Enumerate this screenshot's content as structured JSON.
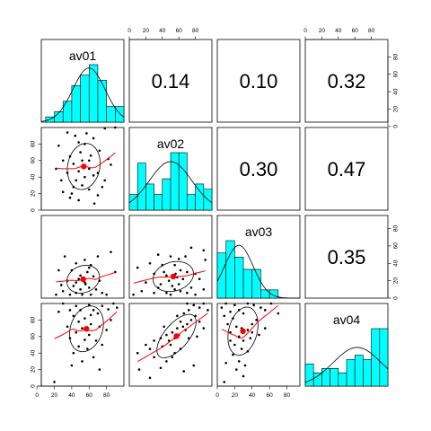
{
  "chart_data": {
    "type": "scatter",
    "title": "",
    "variables": [
      "av01",
      "av02",
      "av03",
      "av04"
    ],
    "correlations": [
      {
        "row": 0,
        "col": 1,
        "value": "0.14"
      },
      {
        "row": 0,
        "col": 2,
        "value": "0.10"
      },
      {
        "row": 0,
        "col": 3,
        "value": "0.32"
      },
      {
        "row": 1,
        "col": 2,
        "value": "0.30"
      },
      {
        "row": 1,
        "col": 3,
        "value": "0.47"
      },
      {
        "row": 2,
        "col": 3,
        "value": "0.35"
      }
    ],
    "axes": {
      "av01": {
        "range": [
          5,
          100
        ],
        "ticks": [
          0,
          20,
          40,
          60,
          80
        ],
        "tick_labels": [
          "0",
          "20",
          "40",
          "60",
          "80"
        ]
      },
      "av02": {
        "range": [
          0,
          100
        ],
        "ticks": [
          0,
          20,
          40,
          60,
          80
        ],
        "tick_labels": [
          "0",
          "20",
          "40",
          "60",
          "80"
        ]
      },
      "av03": {
        "range": [
          0,
          95
        ],
        "ticks": [
          0,
          20,
          40,
          60,
          80
        ],
        "tick_labels": [
          "0",
          "20",
          "40",
          "60",
          "80"
        ]
      },
      "av04": {
        "range": [
          0,
          100
        ],
        "ticks": [
          0,
          20,
          40,
          60,
          80
        ],
        "tick_labels": [
          "0",
          "20",
          "40",
          "60",
          "80"
        ]
      }
    },
    "histograms": {
      "av01": {
        "breaks": [
          10,
          20,
          30,
          40,
          50,
          60,
          70,
          80,
          90,
          100
        ],
        "counts": [
          1,
          2,
          4,
          7,
          9,
          11,
          8,
          3,
          3
        ]
      },
      "av02": {
        "breaks": [
          0,
          10,
          20,
          30,
          40,
          50,
          60,
          70,
          80,
          90,
          100
        ],
        "counts": [
          3,
          9,
          5,
          3,
          6,
          11,
          11,
          3,
          5,
          4
        ]
      },
      "av03": {
        "breaks": [
          0,
          10,
          20,
          30,
          40,
          50,
          60,
          70,
          80
        ],
        "counts": [
          11,
          14,
          10,
          7,
          7,
          2,
          2,
          0
        ]
      },
      "av04": {
        "breaks": [
          0,
          10,
          20,
          30,
          40,
          50,
          60,
          70,
          80,
          90,
          100
        ],
        "counts": [
          5,
          3,
          4,
          4,
          3,
          6,
          7,
          6,
          13,
          13
        ]
      }
    },
    "means": {
      "av01": 57,
      "av02": 54,
      "av03": 31,
      "av04": 64
    },
    "pairs": [
      {
        "x": "av01",
        "y": "av02",
        "points": [
          [
            35,
            94
          ],
          [
            44,
            90
          ],
          [
            57,
            93
          ],
          [
            65,
            87
          ],
          [
            78,
            99
          ],
          [
            90,
            100
          ],
          [
            25,
            78
          ],
          [
            48,
            82
          ],
          [
            55,
            80
          ],
          [
            72,
            72
          ],
          [
            38,
            65
          ],
          [
            30,
            60
          ],
          [
            62,
            66
          ],
          [
            52,
            60
          ],
          [
            82,
            62
          ],
          [
            42,
            56
          ],
          [
            55,
            52
          ],
          [
            60,
            50
          ],
          [
            48,
            47
          ],
          [
            70,
            45
          ],
          [
            35,
            45
          ],
          [
            55,
            40
          ],
          [
            65,
            42
          ],
          [
            28,
            36
          ],
          [
            45,
            36
          ],
          [
            78,
            36
          ],
          [
            52,
            30
          ],
          [
            30,
            22
          ],
          [
            60,
            25
          ],
          [
            40,
            20
          ],
          [
            70,
            18
          ],
          [
            22,
            50
          ],
          [
            85,
            55
          ],
          [
            50,
            70
          ],
          [
            60,
            60
          ],
          [
            42,
            28
          ],
          [
            75,
            28
          ],
          [
            66,
            8
          ],
          [
            48,
            12
          ],
          [
            38,
            15
          ]
        ]
      },
      {
        "x": "av01",
        "y": "av03",
        "points": [
          [
            32,
            48
          ],
          [
            55,
            44
          ],
          [
            70,
            48
          ],
          [
            85,
            53
          ],
          [
            45,
            40
          ],
          [
            62,
            38
          ],
          [
            25,
            32
          ],
          [
            40,
            32
          ],
          [
            58,
            30
          ],
          [
            50,
            26
          ],
          [
            65,
            25
          ],
          [
            48,
            22
          ],
          [
            35,
            20
          ],
          [
            55,
            18
          ],
          [
            42,
            14
          ],
          [
            60,
            12
          ],
          [
            68,
            10
          ],
          [
            50,
            10
          ],
          [
            30,
            8
          ],
          [
            45,
            6
          ],
          [
            75,
            6
          ],
          [
            38,
            4
          ],
          [
            52,
            4
          ],
          [
            62,
            4
          ],
          [
            22,
            4
          ],
          [
            80,
            4
          ],
          [
            56,
            16
          ],
          [
            45,
            18
          ],
          [
            72,
            20
          ],
          [
            90,
            30
          ],
          [
            60,
            35
          ],
          [
            28,
            15
          ]
        ]
      },
      {
        "x": "av02",
        "y": "av03",
        "points": [
          [
            10,
            35
          ],
          [
            25,
            40
          ],
          [
            35,
            50
          ],
          [
            50,
            48
          ],
          [
            60,
            45
          ],
          [
            75,
            58
          ],
          [
            90,
            55
          ],
          [
            40,
            38
          ],
          [
            55,
            38
          ],
          [
            62,
            32
          ],
          [
            70,
            30
          ],
          [
            80,
            28
          ],
          [
            30,
            28
          ],
          [
            45,
            26
          ],
          [
            58,
            24
          ],
          [
            48,
            20
          ],
          [
            65,
            22
          ],
          [
            85,
            22
          ],
          [
            20,
            18
          ],
          [
            38,
            16
          ],
          [
            52,
            14
          ],
          [
            60,
            16
          ],
          [
            75,
            12
          ],
          [
            90,
            10
          ],
          [
            15,
            8
          ],
          [
            30,
            6
          ],
          [
            45,
            6
          ],
          [
            62,
            8
          ],
          [
            70,
            6
          ],
          [
            80,
            4
          ],
          [
            55,
            10
          ],
          [
            42,
            30
          ],
          [
            92,
            44
          ],
          [
            68,
            48
          ],
          [
            56,
            28
          ],
          [
            50,
            4
          ],
          [
            35,
            12
          ],
          [
            5,
            4
          ]
        ]
      },
      {
        "x": "av01",
        "y": "av04",
        "points": [
          [
            30,
            100
          ],
          [
            45,
            97
          ],
          [
            60,
            98
          ],
          [
            75,
            97
          ],
          [
            92,
            95
          ],
          [
            25,
            90
          ],
          [
            38,
            92
          ],
          [
            65,
            92
          ],
          [
            82,
            93
          ],
          [
            42,
            85
          ],
          [
            70,
            88
          ],
          [
            55,
            82
          ],
          [
            85,
            80
          ],
          [
            48,
            78
          ],
          [
            62,
            75
          ],
          [
            35,
            72
          ],
          [
            72,
            72
          ],
          [
            52,
            70
          ],
          [
            45,
            65
          ],
          [
            60,
            62
          ],
          [
            80,
            68
          ],
          [
            38,
            58
          ],
          [
            55,
            56
          ],
          [
            68,
            55
          ],
          [
            48,
            48
          ],
          [
            75,
            50
          ],
          [
            58,
            45
          ],
          [
            42,
            40
          ],
          [
            65,
            35
          ],
          [
            52,
            30
          ],
          [
            40,
            25
          ],
          [
            72,
            20
          ],
          [
            20,
            5
          ],
          [
            88,
            100
          ],
          [
            62,
            86
          ],
          [
            50,
            92
          ]
        ]
      },
      {
        "x": "av02",
        "y": "av04",
        "points": [
          [
            10,
            40
          ],
          [
            12,
            20
          ],
          [
            25,
            45
          ],
          [
            30,
            55
          ],
          [
            38,
            58
          ],
          [
            45,
            62
          ],
          [
            52,
            65
          ],
          [
            58,
            70
          ],
          [
            62,
            78
          ],
          [
            66,
            88
          ],
          [
            72,
            92
          ],
          [
            78,
            98
          ],
          [
            85,
            95
          ],
          [
            90,
            100
          ],
          [
            95,
            92
          ],
          [
            40,
            48
          ],
          [
            48,
            55
          ],
          [
            55,
            58
          ],
          [
            60,
            62
          ],
          [
            65,
            72
          ],
          [
            70,
            75
          ],
          [
            75,
            80
          ],
          [
            80,
            85
          ],
          [
            68,
            68
          ],
          [
            50,
            50
          ],
          [
            42,
            72
          ],
          [
            58,
            85
          ],
          [
            30,
            35
          ],
          [
            20,
            50
          ],
          [
            85,
            78
          ],
          [
            90,
            70
          ],
          [
            72,
            58
          ],
          [
            62,
            45
          ],
          [
            55,
            40
          ],
          [
            45,
            30
          ],
          [
            38,
            22
          ],
          [
            66,
            18
          ],
          [
            78,
            25
          ],
          [
            25,
            10
          ],
          [
            52,
            35
          ],
          [
            70,
            100
          ],
          [
            82,
            60
          ]
        ]
      },
      {
        "x": "av03",
        "y": "av04",
        "points": [
          [
            5,
            95
          ],
          [
            10,
            100
          ],
          [
            15,
            90
          ],
          [
            20,
            98
          ],
          [
            8,
            85
          ],
          [
            18,
            82
          ],
          [
            25,
            92
          ],
          [
            30,
            88
          ],
          [
            35,
            100
          ],
          [
            42,
            98
          ],
          [
            50,
            95
          ],
          [
            55,
            92
          ],
          [
            62,
            100
          ],
          [
            12,
            75
          ],
          [
            22,
            72
          ],
          [
            28,
            70
          ],
          [
            35,
            68
          ],
          [
            40,
            65
          ],
          [
            45,
            80
          ],
          [
            15,
            65
          ],
          [
            25,
            60
          ],
          [
            30,
            55
          ],
          [
            38,
            58
          ],
          [
            20,
            50
          ],
          [
            28,
            45
          ],
          [
            35,
            42
          ],
          [
            18,
            38
          ],
          [
            25,
            30
          ],
          [
            32,
            25
          ],
          [
            10,
            28
          ],
          [
            22,
            20
          ],
          [
            30,
            12
          ],
          [
            8,
            5
          ],
          [
            48,
            62
          ],
          [
            55,
            70
          ],
          [
            40,
            75
          ],
          [
            70,
            88
          ],
          [
            15,
            55
          ]
        ]
      }
    ]
  }
}
